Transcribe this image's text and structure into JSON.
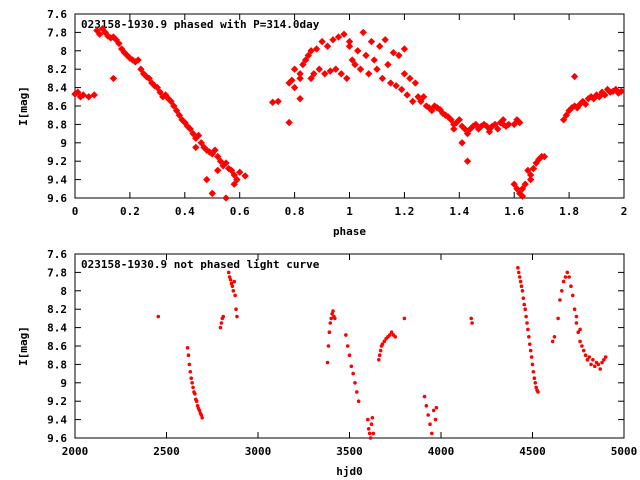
{
  "chart_data": [
    {
      "type": "scatter",
      "title": "023158-1930.9 phased with P=314.0day",
      "xlabel": "phase",
      "ylabel": "I[mag]",
      "xlim": [
        0,
        2
      ],
      "ylim": [
        9.6,
        7.6
      ],
      "y_inverted": true,
      "xticks": [
        "0",
        "0.2",
        "0.4",
        "0.6",
        "0.8",
        "1",
        "1.2",
        "1.4",
        "1.6",
        "1.8",
        "2"
      ],
      "yticks": [
        "7.6",
        "7.8",
        "8",
        "8.2",
        "8.4",
        "8.6",
        "8.8",
        "9",
        "9.2",
        "9.4",
        "9.6"
      ],
      "grid": false,
      "marker_color": "#ff0000",
      "points": [
        [
          0.0,
          8.47
        ],
        [
          0.01,
          8.45
        ],
        [
          0.02,
          8.5
        ],
        [
          0.03,
          8.48
        ],
        [
          0.05,
          8.5
        ],
        [
          0.07,
          8.48
        ],
        [
          0.08,
          7.78
        ],
        [
          0.09,
          7.82
        ],
        [
          0.1,
          7.76
        ],
        [
          0.11,
          7.8
        ],
        [
          0.12,
          7.84
        ],
        [
          0.13,
          7.86
        ],
        [
          0.14,
          7.85
        ],
        [
          0.14,
          8.3
        ],
        [
          0.15,
          7.88
        ],
        [
          0.16,
          7.92
        ],
        [
          0.17,
          7.98
        ],
        [
          0.18,
          8.02
        ],
        [
          0.19,
          8.05
        ],
        [
          0.2,
          8.08
        ],
        [
          0.21,
          8.1
        ],
        [
          0.22,
          8.12
        ],
        [
          0.23,
          8.1
        ],
        [
          0.24,
          8.2
        ],
        [
          0.25,
          8.25
        ],
        [
          0.26,
          8.28
        ],
        [
          0.27,
          8.3
        ],
        [
          0.28,
          8.35
        ],
        [
          0.29,
          8.38
        ],
        [
          0.3,
          8.4
        ],
        [
          0.31,
          8.45
        ],
        [
          0.32,
          8.5
        ],
        [
          0.33,
          8.48
        ],
        [
          0.34,
          8.52
        ],
        [
          0.35,
          8.55
        ],
        [
          0.36,
          8.6
        ],
        [
          0.37,
          8.65
        ],
        [
          0.38,
          8.7
        ],
        [
          0.39,
          8.75
        ],
        [
          0.4,
          8.78
        ],
        [
          0.41,
          8.82
        ],
        [
          0.42,
          8.85
        ],
        [
          0.43,
          8.9
        ],
        [
          0.44,
          8.95
        ],
        [
          0.44,
          9.05
        ],
        [
          0.45,
          8.92
        ],
        [
          0.46,
          9.0
        ],
        [
          0.47,
          9.05
        ],
        [
          0.48,
          9.08
        ],
        [
          0.49,
          9.1
        ],
        [
          0.5,
          9.12
        ],
        [
          0.51,
          9.08
        ],
        [
          0.52,
          9.15
        ],
        [
          0.52,
          9.3
        ],
        [
          0.53,
          9.2
        ],
        [
          0.54,
          9.25
        ],
        [
          0.55,
          9.22
        ],
        [
          0.56,
          9.28
        ],
        [
          0.57,
          9.3
        ],
        [
          0.58,
          9.35
        ],
        [
          0.58,
          9.45
        ],
        [
          0.59,
          9.4
        ],
        [
          0.6,
          9.32
        ],
        [
          0.62,
          9.36
        ],
        [
          0.5,
          9.55
        ],
        [
          0.55,
          9.6
        ],
        [
          0.48,
          9.4
        ],
        [
          0.72,
          8.56
        ],
        [
          0.74,
          8.55
        ],
        [
          0.78,
          8.35
        ],
        [
          0.79,
          8.32
        ],
        [
          0.8,
          8.4
        ],
        [
          0.8,
          8.2
        ],
        [
          0.82,
          8.3
        ],
        [
          0.82,
          8.52
        ],
        [
          0.83,
          8.15
        ],
        [
          0.84,
          8.1
        ],
        [
          0.85,
          8.05
        ],
        [
          0.86,
          8.0
        ],
        [
          0.86,
          8.3
        ],
        [
          0.87,
          8.25
        ],
        [
          0.88,
          7.98
        ],
        [
          0.89,
          8.2
        ],
        [
          0.9,
          7.9
        ],
        [
          0.91,
          8.25
        ],
        [
          0.92,
          7.95
        ],
        [
          0.93,
          8.22
        ],
        [
          0.94,
          7.88
        ],
        [
          0.95,
          8.2
        ],
        [
          0.96,
          7.85
        ],
        [
          0.97,
          8.25
        ],
        [
          0.98,
          7.82
        ],
        [
          0.99,
          8.3
        ],
        [
          1.0,
          7.9
        ],
        [
          1.01,
          8.1
        ],
        [
          1.02,
          8.15
        ],
        [
          1.03,
          8.0
        ],
        [
          1.04,
          8.2
        ],
        [
          1.05,
          7.8
        ],
        [
          1.06,
          8.05
        ],
        [
          1.07,
          8.25
        ],
        [
          1.08,
          7.9
        ],
        [
          1.09,
          8.1
        ],
        [
          1.1,
          8.2
        ],
        [
          1.11,
          7.95
        ],
        [
          1.12,
          8.3
        ],
        [
          1.13,
          7.88
        ],
        [
          1.14,
          8.15
        ],
        [
          1.15,
          8.35
        ],
        [
          1.16,
          8.02
        ],
        [
          1.17,
          8.38
        ],
        [
          1.18,
          8.05
        ],
        [
          1.19,
          8.42
        ],
        [
          1.2,
          8.25
        ],
        [
          1.21,
          8.48
        ],
        [
          1.22,
          8.3
        ],
        [
          1.23,
          8.55
        ],
        [
          1.24,
          8.35
        ],
        [
          1.25,
          8.5
        ],
        [
          1.26,
          8.55
        ],
        [
          1.27,
          8.5
        ],
        [
          1.28,
          8.6
        ],
        [
          1.29,
          8.62
        ],
        [
          0.78,
          8.78
        ],
        [
          0.82,
          8.25
        ],
        [
          1.0,
          7.95
        ],
        [
          1.2,
          7.98
        ],
        [
          1.3,
          8.65
        ],
        [
          1.31,
          8.6
        ],
        [
          1.32,
          8.62
        ],
        [
          1.33,
          8.64
        ],
        [
          1.34,
          8.68
        ],
        [
          1.35,
          8.7
        ],
        [
          1.36,
          8.72
        ],
        [
          1.37,
          8.75
        ],
        [
          1.38,
          8.8
        ],
        [
          1.39,
          8.78
        ],
        [
          1.4,
          8.75
        ],
        [
          1.41,
          8.82
        ],
        [
          1.42,
          8.85
        ],
        [
          1.43,
          8.9
        ],
        [
          1.44,
          8.85
        ],
        [
          1.45,
          8.82
        ],
        [
          1.46,
          8.8
        ],
        [
          1.47,
          8.85
        ],
        [
          1.48,
          8.82
        ],
        [
          1.49,
          8.8
        ],
        [
          1.5,
          8.82
        ],
        [
          1.51,
          8.85
        ],
        [
          1.52,
          8.82
        ],
        [
          1.53,
          8.8
        ],
        [
          1.54,
          8.85
        ],
        [
          1.55,
          8.78
        ],
        [
          1.56,
          8.8
        ],
        [
          1.57,
          8.82
        ],
        [
          1.58,
          8.8
        ],
        [
          1.6,
          8.8
        ],
        [
          1.61,
          8.75
        ],
        [
          1.62,
          8.78
        ],
        [
          1.38,
          8.85
        ],
        [
          1.41,
          9.0
        ],
        [
          1.43,
          9.2
        ],
        [
          1.51,
          8.88
        ],
        [
          1.56,
          8.75
        ],
        [
          1.6,
          9.45
        ],
        [
          1.61,
          9.5
        ],
        [
          1.62,
          9.55
        ],
        [
          1.63,
          9.5
        ],
        [
          1.64,
          9.45
        ],
        [
          1.65,
          9.3
        ],
        [
          1.66,
          9.35
        ],
        [
          1.67,
          9.28
        ],
        [
          1.68,
          9.22
        ],
        [
          1.69,
          9.18
        ],
        [
          1.7,
          9.15
        ],
        [
          1.71,
          9.15
        ],
        [
          1.63,
          9.58
        ],
        [
          1.66,
          9.4
        ],
        [
          1.78,
          8.75
        ],
        [
          1.79,
          8.7
        ],
        [
          1.8,
          8.65
        ],
        [
          1.81,
          8.62
        ],
        [
          1.82,
          8.6
        ],
        [
          1.83,
          8.62
        ],
        [
          1.84,
          8.58
        ],
        [
          1.85,
          8.55
        ],
        [
          1.86,
          8.58
        ],
        [
          1.87,
          8.52
        ],
        [
          1.88,
          8.5
        ],
        [
          1.89,
          8.52
        ],
        [
          1.9,
          8.48
        ],
        [
          1.91,
          8.5
        ],
        [
          1.92,
          8.45
        ],
        [
          1.93,
          8.48
        ],
        [
          1.94,
          8.42
        ],
        [
          1.95,
          8.45
        ],
        [
          1.96,
          8.44
        ],
        [
          1.97,
          8.42
        ],
        [
          1.98,
          8.46
        ],
        [
          1.99,
          8.44
        ],
        [
          1.82,
          8.28
        ]
      ]
    },
    {
      "type": "scatter",
      "title": "023158-1930.9 not phased light curve",
      "xlabel": "hjd0",
      "ylabel": "I[mag]",
      "xlim": [
        2000,
        5000
      ],
      "ylim": [
        9.6,
        7.6
      ],
      "y_inverted": true,
      "xticks": [
        "2000",
        "2500",
        "3000",
        "3500",
        "4000",
        "4500",
        "5000"
      ],
      "yticks": [
        "7.6",
        "7.8",
        "8",
        "8.2",
        "8.4",
        "8.6",
        "8.8",
        "9",
        "9.2",
        "9.4",
        "9.6"
      ],
      "grid": false,
      "marker_color": "#ff0000",
      "points": [
        [
          2455,
          8.28
        ],
        [
          2615,
          8.62
        ],
        [
          2620,
          8.7
        ],
        [
          2625,
          8.8
        ],
        [
          2630,
          8.88
        ],
        [
          2635,
          8.95
        ],
        [
          2640,
          9.0
        ],
        [
          2645,
          9.05
        ],
        [
          2650,
          9.1
        ],
        [
          2655,
          9.12
        ],
        [
          2660,
          9.18
        ],
        [
          2665,
          9.2
        ],
        [
          2670,
          9.25
        ],
        [
          2675,
          9.28
        ],
        [
          2680,
          9.3
        ],
        [
          2685,
          9.33
        ],
        [
          2690,
          9.35
        ],
        [
          2695,
          9.38
        ],
        [
          2795,
          8.4
        ],
        [
          2800,
          8.35
        ],
        [
          2805,
          8.3
        ],
        [
          2810,
          8.28
        ],
        [
          2840,
          7.8
        ],
        [
          2845,
          7.85
        ],
        [
          2850,
          7.88
        ],
        [
          2855,
          7.92
        ],
        [
          2860,
          7.95
        ],
        [
          2865,
          8.0
        ],
        [
          2870,
          7.9
        ],
        [
          2875,
          8.05
        ],
        [
          2880,
          8.2
        ],
        [
          2885,
          8.28
        ],
        [
          3380,
          8.78
        ],
        [
          3385,
          8.6
        ],
        [
          3390,
          8.45
        ],
        [
          3395,
          8.35
        ],
        [
          3400,
          8.3
        ],
        [
          3405,
          8.25
        ],
        [
          3410,
          8.22
        ],
        [
          3415,
          8.28
        ],
        [
          3420,
          8.3
        ],
        [
          3480,
          8.48
        ],
        [
          3490,
          8.6
        ],
        [
          3500,
          8.7
        ],
        [
          3510,
          8.82
        ],
        [
          3520,
          8.9
        ],
        [
          3530,
          9.0
        ],
        [
          3540,
          9.1
        ],
        [
          3550,
          9.2
        ],
        [
          3600,
          9.4
        ],
        [
          3605,
          9.5
        ],
        [
          3610,
          9.55
        ],
        [
          3615,
          9.6
        ],
        [
          3620,
          9.45
        ],
        [
          3625,
          9.38
        ],
        [
          3630,
          9.55
        ],
        [
          3660,
          8.75
        ],
        [
          3665,
          8.7
        ],
        [
          3670,
          8.65
        ],
        [
          3675,
          8.6
        ],
        [
          3680,
          8.58
        ],
        [
          3690,
          8.55
        ],
        [
          3700,
          8.52
        ],
        [
          3710,
          8.5
        ],
        [
          3720,
          8.48
        ],
        [
          3730,
          8.45
        ],
        [
          3740,
          8.48
        ],
        [
          3750,
          8.5
        ],
        [
          3800,
          8.3
        ],
        [
          3910,
          9.15
        ],
        [
          3920,
          9.25
        ],
        [
          3930,
          9.35
        ],
        [
          3940,
          9.45
        ],
        [
          3950,
          9.55
        ],
        [
          3960,
          9.3
        ],
        [
          3970,
          9.4
        ],
        [
          3975,
          9.27
        ],
        [
          4165,
          8.3
        ],
        [
          4170,
          8.35
        ],
        [
          4420,
          7.75
        ],
        [
          4425,
          7.8
        ],
        [
          4430,
          7.85
        ],
        [
          4435,
          7.9
        ],
        [
          4440,
          7.95
        ],
        [
          4445,
          8.0
        ],
        [
          4450,
          8.08
        ],
        [
          4455,
          8.15
        ],
        [
          4460,
          8.2
        ],
        [
          4465,
          8.28
        ],
        [
          4470,
          8.35
        ],
        [
          4475,
          8.42
        ],
        [
          4480,
          8.5
        ],
        [
          4485,
          8.58
        ],
        [
          4490,
          8.65
        ],
        [
          4495,
          8.72
        ],
        [
          4500,
          8.8
        ],
        [
          4505,
          8.88
        ],
        [
          4510,
          8.95
        ],
        [
          4515,
          9.0
        ],
        [
          4520,
          9.05
        ],
        [
          4525,
          9.08
        ],
        [
          4530,
          9.1
        ],
        [
          4610,
          8.55
        ],
        [
          4620,
          8.5
        ],
        [
          4640,
          8.3
        ],
        [
          4650,
          8.1
        ],
        [
          4660,
          8.0
        ],
        [
          4670,
          7.9
        ],
        [
          4680,
          7.85
        ],
        [
          4690,
          7.8
        ],
        [
          4700,
          7.85
        ],
        [
          4710,
          7.95
        ],
        [
          4720,
          8.05
        ],
        [
          4730,
          8.2
        ],
        [
          4740,
          8.35
        ],
        [
          4750,
          8.45
        ],
        [
          4760,
          8.55
        ],
        [
          4770,
          8.6
        ],
        [
          4780,
          8.65
        ],
        [
          4790,
          8.7
        ],
        [
          4800,
          8.75
        ],
        [
          4810,
          8.72
        ],
        [
          4820,
          8.8
        ],
        [
          4830,
          8.75
        ],
        [
          4840,
          8.82
        ],
        [
          4850,
          8.78
        ],
        [
          4860,
          8.8
        ],
        [
          4870,
          8.85
        ],
        [
          4880,
          8.78
        ],
        [
          4890,
          8.75
        ],
        [
          4900,
          8.72
        ],
        [
          4740,
          8.28
        ],
        [
          4760,
          8.42
        ]
      ]
    }
  ]
}
